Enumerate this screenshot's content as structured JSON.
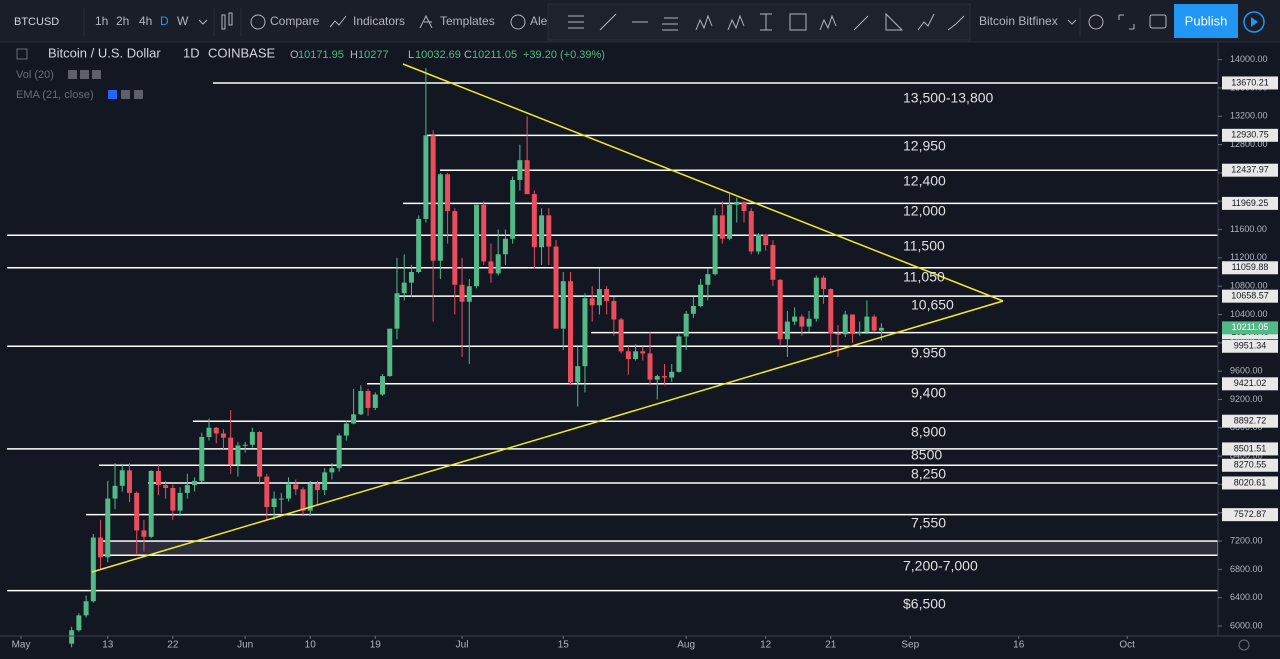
{
  "toolbar": {
    "symbol": "BTCUSD",
    "intervals": [
      "1h",
      "2h",
      "4h",
      "D",
      "W"
    ],
    "compare": "Compare",
    "indicators": "Indicators",
    "templates": "Templates",
    "alerts": "Ale",
    "exchange": "Bitcoin Bitfinex",
    "publish": "Publish"
  },
  "legend": {
    "name": "Bitcoin / U.S. Dollar",
    "interval": "1D",
    "exchange": "COINBASE",
    "ohlc_labels": [
      "O",
      "H",
      "L",
      "C"
    ],
    "change": "+39.20 (+0.39%)",
    "studies": [
      "Vol (20)",
      "EMA (21, close)"
    ]
  },
  "chart_data": {
    "type": "candlestick",
    "up_color": "#53b987",
    "down_color": "#eb4d5c",
    "grid": false,
    "xlim": [
      -1.94,
      165.56
    ],
    "xticks": [
      {
        "value": 0,
        "label": "May"
      },
      {
        "value": 12,
        "label": "13"
      },
      {
        "value": 21,
        "label": "22"
      },
      {
        "value": 31,
        "label": "Jun"
      },
      {
        "value": 40,
        "label": "10"
      },
      {
        "value": 49,
        "label": "19"
      },
      {
        "value": 61,
        "label": "Jul"
      },
      {
        "value": 75,
        "label": "15"
      },
      {
        "value": 92,
        "label": "Aug"
      },
      {
        "value": 103,
        "label": "12"
      },
      {
        "value": 112,
        "label": "21"
      },
      {
        "value": 123,
        "label": "Sep"
      },
      {
        "value": 138,
        "label": "16"
      },
      {
        "value": 153,
        "label": "Oct"
      }
    ],
    "ylim": [
      5859,
      14277
    ],
    "yticks": [
      {
        "value": 6000,
        "label": "6000.00"
      },
      {
        "value": 6400,
        "label": "6400.00"
      },
      {
        "value": 6800,
        "label": "6800.00"
      },
      {
        "value": 7200,
        "label": "7200.00"
      },
      {
        "value": 7600,
        "label": "7600.00"
      },
      {
        "value": 8000,
        "label": "8000.00"
      },
      {
        "value": 8400,
        "label": "8400.00"
      },
      {
        "value": 8800,
        "label": "8800.00"
      },
      {
        "value": 9200,
        "label": "9200.00"
      },
      {
        "value": 9600,
        "label": "9600.00"
      },
      {
        "value": 10000,
        "label": "10000.00"
      },
      {
        "value": 10400,
        "label": "10400.00"
      },
      {
        "value": 10800,
        "label": "10800.00"
      },
      {
        "value": 11200,
        "label": "11200.00"
      },
      {
        "value": 11600,
        "label": "11600.00"
      },
      {
        "value": 12000,
        "label": "12000.00"
      },
      {
        "value": 12400,
        "label": "12400.00"
      },
      {
        "value": 12800,
        "label": "12800.00"
      },
      {
        "value": 13200,
        "label": "13200.00"
      },
      {
        "value": 13600,
        "label": "13600.00"
      },
      {
        "value": 14000,
        "label": "14000.00"
      }
    ],
    "x": [
      7,
      8,
      9,
      10,
      11,
      12,
      13,
      14,
      15,
      16,
      17,
      18,
      19,
      20,
      21,
      22,
      23,
      24,
      25,
      26,
      27,
      28,
      29,
      30,
      31,
      32,
      33,
      34,
      35,
      36,
      37,
      38,
      39,
      40,
      41,
      42,
      43,
      44,
      45,
      46,
      47,
      48,
      49,
      50,
      51,
      52,
      53,
      54,
      55,
      56,
      57,
      58,
      59,
      60,
      61,
      62,
      63,
      64,
      65,
      66,
      67,
      68,
      69,
      70,
      71,
      72,
      73,
      74,
      75,
      76,
      77,
      78,
      79,
      80,
      81,
      82,
      83,
      84,
      85,
      86,
      87,
      88,
      89,
      90,
      91,
      92,
      93,
      94,
      95,
      96,
      97,
      98,
      99,
      100,
      101,
      102,
      103,
      104,
      105,
      106,
      107,
      108,
      109,
      110,
      111,
      112,
      113,
      114,
      115,
      116,
      117,
      118,
      119
    ],
    "open": [
      5750,
      5940,
      6150,
      6350,
      7250,
      6970,
      7800,
      7980,
      8200,
      7880,
      7350,
      7260,
      8190,
      7990,
      7950,
      7630,
      7880,
      7990,
      8050,
      8670,
      8800,
      8720,
      8660,
      8280,
      8550,
      8560,
      8740,
      8110,
      7680,
      7800,
      7800,
      8000,
      7930,
      7630,
      8010,
      7920,
      8170,
      8230,
      8690,
      8860,
      8990,
      9320,
      9080,
      9270,
      9530,
      10200,
      10700,
      10850,
      11000,
      11750,
      12930,
      11160,
      12380,
      11860,
      10820,
      10580,
      10800,
      11950,
      11150,
      10980,
      11250,
      11470,
      12300,
      12580,
      12100,
      11350,
      11800,
      11360,
      10200,
      10870,
      9440,
      9670,
      10630,
      10530,
      10760,
      10590,
      10330,
      9880,
      9770,
      9880,
      9850,
      9480,
      9530,
      9510,
      9590,
      10090,
      10410,
      10520,
      10820,
      10970,
      11800,
      11470,
      11950,
      11990,
      11860,
      11290,
      11530,
      11380,
      10890,
      10050,
      10300,
      10370,
      10230,
      10340,
      10920,
      10760,
      10130,
      10120,
      10400,
      10140,
      10150,
      10370,
      10171.95
    ],
    "high": [
      5990,
      6180,
      6430,
      7300,
      7500,
      8050,
      8300,
      8290,
      8300,
      7900,
      7500,
      8200,
      8270,
      8050,
      8000,
      7960,
      8150,
      8100,
      8730,
      8930,
      8810,
      8780,
      9050,
      8600,
      8600,
      8800,
      8750,
      8150,
      7900,
      7880,
      8100,
      8070,
      7960,
      8050,
      8050,
      8230,
      8300,
      8720,
      8900,
      9350,
      9400,
      9350,
      9300,
      9560,
      10200,
      11200,
      11250,
      11100,
      11800,
      13880,
      13000,
      12400,
      12400,
      11900,
      11200,
      10900,
      11950,
      12000,
      11400,
      11600,
      11600,
      12350,
      12800,
      13200,
      12150,
      11900,
      11900,
      11450,
      11000,
      11000,
      9950,
      10700,
      10800,
      11050,
      10800,
      10650,
      10350,
      9950,
      9980,
      9950,
      10150,
      9550,
      9700,
      9700,
      10120,
      10450,
      10650,
      10900,
      11050,
      11900,
      12000,
      12100,
      12050,
      12000,
      11900,
      11550,
      11540,
      11450,
      10900,
      10450,
      10500,
      10400,
      10450,
      10950,
      10950,
      10770,
      10250,
      10450,
      10400,
      10300,
      10600,
      10400,
      10277
    ],
    "low": [
      5700,
      5920,
      6120,
      6330,
      6800,
      6900,
      7650,
      7900,
      7750,
      7000,
      7050,
      7240,
      7850,
      7800,
      7500,
      7550,
      7800,
      7900,
      8030,
      8620,
      8580,
      8500,
      8150,
      8110,
      8450,
      8520,
      8000,
      7500,
      7500,
      7600,
      7760,
      7850,
      7550,
      7550,
      7700,
      7850,
      8070,
      8180,
      8620,
      8850,
      8980,
      8970,
      9050,
      9250,
      9520,
      10050,
      10600,
      10650,
      10980,
      11700,
      10300,
      10900,
      11400,
      10400,
      9800,
      9700,
      10770,
      11100,
      10850,
      10950,
      11100,
      11400,
      12150,
      12100,
      11050,
      11100,
      11100,
      10200,
      9900,
      9400,
      9100,
      9300,
      10300,
      10400,
      10400,
      10100,
      9850,
      9550,
      9750,
      9750,
      9400,
      9200,
      9400,
      9450,
      9580,
      9900,
      10350,
      10500,
      10600,
      10950,
      11400,
      11450,
      11700,
      11700,
      11250,
      11250,
      11300,
      10800,
      9950,
      9800,
      10250,
      10100,
      10150,
      10300,
      10550,
      9850,
      9800,
      10080,
      10000,
      10100,
      10120,
      10150,
      10032.69
    ],
    "close": [
      5940,
      6150,
      6350,
      7250,
      6970,
      7800,
      7980,
      8200,
      7880,
      7350,
      7260,
      8190,
      7990,
      7950,
      7630,
      7880,
      7990,
      8050,
      8670,
      8800,
      8720,
      8660,
      8280,
      8550,
      8560,
      8740,
      8110,
      7680,
      7800,
      7800,
      8000,
      7930,
      7630,
      8010,
      7920,
      8170,
      8230,
      8690,
      8860,
      8990,
      9320,
      9080,
      9270,
      9530,
      10200,
      10700,
      10850,
      11000,
      11750,
      12930,
      11160,
      12380,
      11860,
      10820,
      10580,
      10800,
      11950,
      11150,
      10980,
      11250,
      11470,
      12300,
      12580,
      12100,
      11350,
      11800,
      11360,
      10200,
      10870,
      9440,
      9670,
      10630,
      10530,
      10760,
      10590,
      10330,
      9880,
      9770,
      9880,
      9850,
      9480,
      9530,
      9510,
      9590,
      10090,
      10410,
      10520,
      10820,
      10970,
      11800,
      11470,
      11950,
      11990,
      11860,
      11290,
      11530,
      11380,
      10890,
      10050,
      10300,
      10370,
      10230,
      10340,
      10920,
      10760,
      10130,
      10120,
      10400,
      10140,
      10150,
      10370,
      10171.95,
      10211.05
    ],
    "price_lines": [
      13670.21,
      12930.75,
      12437.97,
      11969.25,
      11059.88,
      10658.57,
      {
        "value": 10144.4,
        "label": "10144.40"
      },
      9951.34,
      9421.02,
      8892.72,
      8501.51,
      8270.55,
      8020.61,
      7572.87
    ],
    "unlabeled_lines": [
      11520,
      6500
    ],
    "band": [
      7000,
      7200
    ],
    "notes": [
      "13,500-13,800",
      "12,950",
      "12,400",
      "12,000",
      "11,500",
      "11,050",
      "10,650",
      "9.950",
      "9,400",
      "8,900",
      "8500",
      "8,250",
      "7,550",
      "7,200-7,000",
      "$6,500"
    ]
  }
}
